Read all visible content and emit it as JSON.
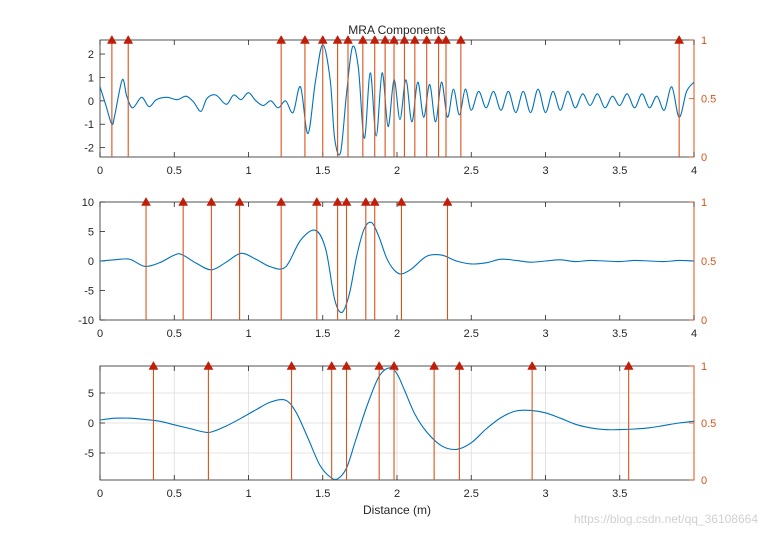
{
  "colors": {
    "signal": "#0072BD",
    "stem": "#D95319",
    "marker": "#C11E0A",
    "axis": "#262626",
    "right_axis": "#D95319",
    "grid": "#DCDCDC"
  },
  "watermark": "https://blog.csdn.net/qq_36108664",
  "chart_data": [
    {
      "type": "line",
      "title": "MRA Components",
      "xlabel": "",
      "xlim": [
        0,
        4
      ],
      "ylim": [
        -2.4,
        2.6
      ],
      "xticks": [
        0,
        0.5,
        1,
        1.5,
        2,
        2.5,
        3,
        3.5,
        4
      ],
      "xtick_labels": [
        "0",
        "0.5",
        "1",
        "1.5",
        "2",
        "2.5",
        "3",
        "3.5",
        "4"
      ],
      "yticks": [
        -2,
        -1,
        0,
        1,
        2
      ],
      "ytick_labels": [
        "-2",
        "-1",
        "0",
        "1",
        "2"
      ],
      "y2lim": [
        0,
        1
      ],
      "y2ticks": [
        0,
        0.5,
        1
      ],
      "y2tick_labels": [
        "0",
        "0.5",
        "1"
      ],
      "grid": false,
      "series": [
        {
          "x": [
            0,
            0.04,
            0.08,
            0.1,
            0.15,
            0.18,
            0.22,
            0.28,
            0.33,
            0.38,
            0.45,
            0.52,
            0.58,
            0.63,
            0.68,
            0.72,
            0.78,
            0.85,
            0.9,
            0.95,
            1.0,
            1.05,
            1.1,
            1.15,
            1.2,
            1.25,
            1.3,
            1.35,
            1.4,
            1.45,
            1.5,
            1.55,
            1.58,
            1.62,
            1.66,
            1.7,
            1.74,
            1.78,
            1.82,
            1.86,
            1.9,
            1.94,
            1.98,
            2.02,
            2.06,
            2.1,
            2.14,
            2.18,
            2.22,
            2.26,
            2.3,
            2.34,
            2.38,
            2.42,
            2.46,
            2.5,
            2.55,
            2.6,
            2.65,
            2.7,
            2.75,
            2.8,
            2.85,
            2.9,
            2.95,
            3.0,
            3.05,
            3.1,
            3.15,
            3.2,
            3.25,
            3.3,
            3.35,
            3.4,
            3.45,
            3.5,
            3.55,
            3.6,
            3.65,
            3.7,
            3.75,
            3.8,
            3.85,
            3.9,
            3.95,
            4.0
          ],
          "y": [
            0.6,
            -0.2,
            -1.0,
            -0.6,
            0.9,
            0.2,
            -0.3,
            0.15,
            -0.25,
            0.05,
            0.15,
            0.05,
            0.2,
            -0.05,
            -0.45,
            0.1,
            0.25,
            -0.15,
            0.25,
            0.05,
            0.35,
            0.0,
            -0.2,
            0.0,
            -0.3,
            0.0,
            -0.5,
            0.6,
            -1.4,
            0.8,
            2.4,
            0.9,
            -1.6,
            -2.2,
            0.3,
            2.3,
            1.4,
            -1.6,
            1.2,
            -1.5,
            1.2,
            -1.1,
            0.9,
            -0.8,
            0.9,
            -0.9,
            0.8,
            -0.7,
            0.7,
            -0.9,
            0.8,
            -0.7,
            0.5,
            -0.6,
            0.5,
            -0.4,
            0.4,
            -0.3,
            0.4,
            -0.4,
            0.4,
            -0.5,
            0.4,
            -0.5,
            0.5,
            -0.5,
            0.4,
            -0.4,
            0.4,
            -0.3,
            0.3,
            -0.2,
            0.3,
            -0.3,
            0.2,
            -0.2,
            0.3,
            -0.3,
            0.3,
            -0.3,
            0.2,
            -0.4,
            0.6,
            -0.7,
            0.4,
            0.8
          ]
        }
      ],
      "stems_x": [
        0.08,
        0.19,
        1.22,
        1.38,
        1.5,
        1.6,
        1.67,
        1.77,
        1.85,
        1.92,
        1.98,
        2.05,
        2.12,
        2.2,
        2.28,
        2.33,
        2.43,
        3.9
      ],
      "stems_value": 1
    },
    {
      "type": "line",
      "title": "",
      "xlabel": "",
      "xlim": [
        0,
        4
      ],
      "ylim": [
        -10,
        10
      ],
      "xticks": [
        0,
        0.5,
        1,
        1.5,
        2,
        2.5,
        3,
        3.5,
        4
      ],
      "xtick_labels": [
        "0",
        "0.5",
        "1",
        "1.5",
        "2",
        "2.5",
        "3",
        "3.5",
        "4"
      ],
      "yticks": [
        -10,
        -5,
        0,
        5,
        10
      ],
      "ytick_labels": [
        "-10",
        "-5",
        "0",
        "5",
        "10"
      ],
      "y2lim": [
        0,
        1
      ],
      "y2ticks": [
        0,
        0.5,
        1
      ],
      "y2tick_labels": [
        "0",
        "0.5",
        "1"
      ],
      "grid": false,
      "series": [
        {
          "x": [
            0,
            0.1,
            0.2,
            0.3,
            0.4,
            0.5,
            0.55,
            0.65,
            0.75,
            0.85,
            0.95,
            1.05,
            1.15,
            1.25,
            1.35,
            1.45,
            1.52,
            1.58,
            1.63,
            1.68,
            1.73,
            1.78,
            1.83,
            1.88,
            1.93,
            1.98,
            2.03,
            2.1,
            2.2,
            2.3,
            2.4,
            2.5,
            2.6,
            2.7,
            2.8,
            2.9,
            3.0,
            3.1,
            3.2,
            3.3,
            3.4,
            3.5,
            3.6,
            3.7,
            3.8,
            3.9,
            4.0
          ],
          "y": [
            0,
            0.2,
            0.3,
            -0.9,
            -0.3,
            1.0,
            1.1,
            -0.4,
            -1.5,
            -0.2,
            1.3,
            0.3,
            -1.0,
            -1.0,
            3.5,
            5.2,
            2.0,
            -6.5,
            -8.7,
            -5.5,
            1.0,
            5.5,
            6.5,
            4.0,
            0.5,
            -1.5,
            -2.2,
            -1.3,
            0.8,
            1.0,
            0.0,
            -0.5,
            -0.3,
            0.3,
            0.1,
            -0.2,
            0.0,
            0.2,
            -0.1,
            0.1,
            0.0,
            -0.1,
            0.1,
            0.0,
            -0.1,
            0.1,
            0.0
          ]
        }
      ],
      "stems_x": [
        0.31,
        0.56,
        0.75,
        0.94,
        1.22,
        1.46,
        1.6,
        1.66,
        1.79,
        1.85,
        2.03,
        2.34
      ],
      "stems_value": 1
    },
    {
      "type": "line",
      "title": "",
      "xlabel": "Distance (m)",
      "xlim": [
        0,
        4
      ],
      "ylim": [
        -9.5,
        9.5
      ],
      "xticks": [
        0,
        0.5,
        1,
        1.5,
        2,
        2.5,
        3,
        3.5
      ],
      "xtick_labels": [
        "0",
        "0.5",
        "1",
        "1.5",
        "2",
        "2.5",
        "3",
        "3.5"
      ],
      "yticks": [
        -5,
        0,
        5
      ],
      "ytick_labels": [
        "-5",
        "0",
        "5"
      ],
      "y2lim": [
        0,
        1
      ],
      "y2ticks": [
        0,
        0.5,
        1
      ],
      "y2tick_labels": [
        "0",
        "0.5",
        "1"
      ],
      "grid": true,
      "series": [
        {
          "x": [
            0,
            0.1,
            0.2,
            0.3,
            0.4,
            0.5,
            0.6,
            0.7,
            0.75,
            0.85,
            0.95,
            1.05,
            1.15,
            1.25,
            1.32,
            1.4,
            1.48,
            1.55,
            1.6,
            1.66,
            1.72,
            1.8,
            1.88,
            1.95,
            2.0,
            2.05,
            2.12,
            2.2,
            2.3,
            2.4,
            2.5,
            2.6,
            2.7,
            2.8,
            2.9,
            3.0,
            3.1,
            3.2,
            3.3,
            3.4,
            3.5,
            3.6,
            3.7,
            3.8,
            3.9,
            4.0
          ],
          "y": [
            0.5,
            0.8,
            0.8,
            0.6,
            0.3,
            -0.3,
            -0.9,
            -1.5,
            -1.5,
            -0.5,
            0.8,
            2.2,
            3.5,
            3.8,
            1.8,
            -2.5,
            -7.0,
            -9.0,
            -9.3,
            -7.5,
            -3.0,
            3.0,
            7.8,
            9.2,
            8.2,
            5.5,
            1.5,
            -1.5,
            -3.8,
            -4.4,
            -3.3,
            -1.0,
            0.9,
            2.0,
            2.1,
            1.7,
            0.8,
            -0.2,
            -0.8,
            -1.1,
            -1.1,
            -1.0,
            -0.8,
            -0.4,
            0.0,
            0.3
          ]
        }
      ],
      "stems_x": [
        0.36,
        0.73,
        1.29,
        1.56,
        1.66,
        1.88,
        1.98,
        2.25,
        2.42,
        2.91,
        3.56
      ],
      "stems_value": 1
    }
  ]
}
